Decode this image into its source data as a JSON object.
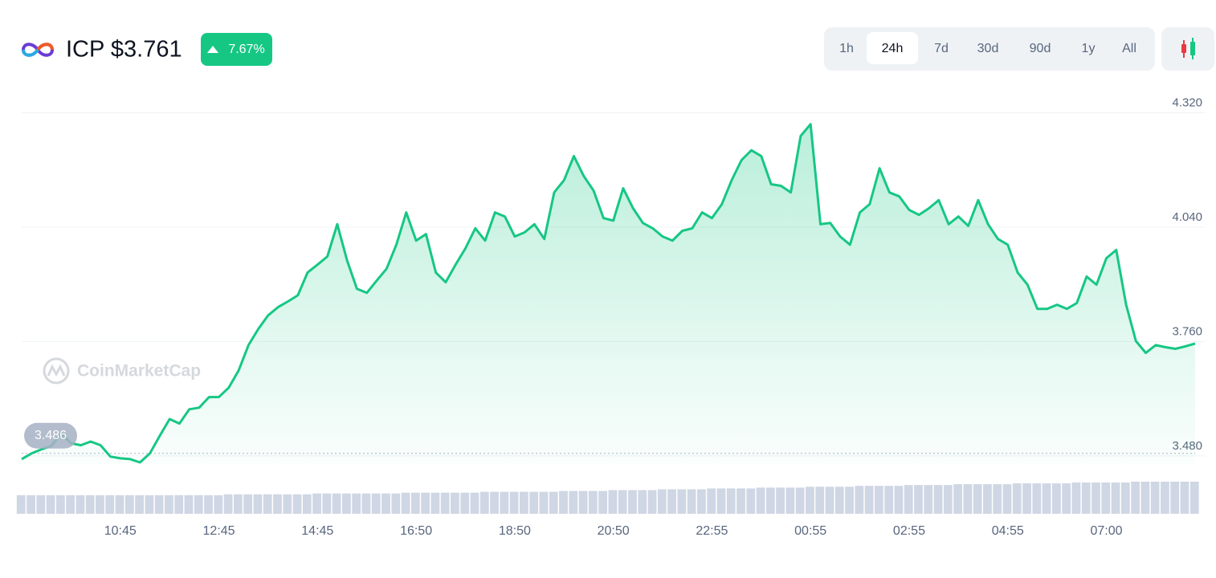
{
  "header": {
    "title": "ICP $3.761",
    "change": "7.67%",
    "ranges": [
      "1h",
      "24h",
      "7d",
      "30d",
      "90d",
      "1y",
      "All"
    ],
    "active_range": "24h",
    "watermark": "CoinMarketCap"
  },
  "chart_data": {
    "type": "line",
    "color": "#16c784",
    "categories": [
      null,
      null,
      null,
      null,
      null,
      null,
      null,
      null,
      null,
      null,
      "10:45",
      null,
      null,
      null,
      null,
      null,
      null,
      null,
      null,
      null,
      "12:45",
      null,
      null,
      null,
      null,
      null,
      null,
      null,
      null,
      null,
      "14:45",
      null,
      null,
      null,
      null,
      null,
      null,
      null,
      null,
      null,
      "16:50",
      null,
      null,
      null,
      null,
      null,
      null,
      null,
      null,
      null,
      "18:50",
      null,
      null,
      null,
      null,
      null,
      null,
      null,
      null,
      null,
      "20:50",
      null,
      null,
      null,
      null,
      null,
      null,
      null,
      null,
      null,
      "22:55",
      null,
      null,
      null,
      null,
      null,
      null,
      null,
      null,
      null,
      "00:55",
      null,
      null,
      null,
      null,
      null,
      null,
      null,
      null,
      null,
      "02:55",
      null,
      null,
      null,
      null,
      null,
      null,
      null,
      null,
      null,
      "04:55",
      null,
      null,
      null,
      null,
      null,
      null,
      null,
      null,
      null,
      "07:00",
      null,
      null,
      null,
      null,
      null,
      null,
      null,
      null,
      null
    ],
    "values": [
      3.472,
      3.486,
      3.496,
      3.504,
      3.535,
      3.511,
      3.506,
      3.515,
      3.506,
      3.478,
      3.474,
      3.472,
      3.464,
      3.486,
      3.529,
      3.57,
      3.559,
      3.594,
      3.598,
      3.624,
      3.624,
      3.647,
      3.689,
      3.751,
      3.791,
      3.824,
      3.844,
      3.858,
      3.873,
      3.929,
      3.948,
      3.968,
      4.047,
      3.958,
      3.889,
      3.879,
      3.909,
      3.938,
      3.997,
      4.076,
      4.007,
      4.023,
      3.929,
      3.905,
      3.948,
      3.988,
      4.037,
      4.007,
      4.076,
      4.066,
      4.017,
      4.027,
      4.047,
      4.011,
      4.125,
      4.155,
      4.214,
      4.165,
      4.129,
      4.062,
      4.056,
      4.135,
      4.086,
      4.05,
      4.037,
      4.017,
      4.007,
      4.031,
      4.037,
      4.076,
      4.062,
      4.096,
      4.155,
      4.204,
      4.228,
      4.214,
      4.145,
      4.141,
      4.125,
      4.263,
      4.292,
      4.047,
      4.05,
      4.017,
      3.997,
      4.076,
      4.096,
      4.184,
      4.125,
      4.115,
      4.082,
      4.07,
      4.086,
      4.106,
      4.047,
      4.066,
      4.043,
      4.106,
      4.047,
      4.011,
      3.997,
      3.929,
      3.899,
      3.84,
      3.84,
      3.85,
      3.84,
      3.854,
      3.919,
      3.899,
      3.964,
      3.984,
      3.85,
      3.761,
      3.732,
      3.751,
      3.746,
      3.742,
      3.748,
      3.755
    ],
    "volume": [
      22,
      22,
      22,
      22,
      22,
      22,
      22,
      22,
      22,
      22,
      22,
      22,
      22,
      22,
      22,
      22,
      22,
      22,
      22,
      22,
      22,
      23,
      23,
      23,
      23,
      23,
      23,
      23,
      23,
      23,
      24,
      24,
      24,
      24,
      24,
      24,
      24,
      24,
      24,
      25,
      25,
      25,
      25,
      25,
      25,
      25,
      25,
      26,
      26,
      26,
      26,
      26,
      26,
      26,
      26,
      27,
      27,
      27,
      27,
      27,
      28,
      28,
      28,
      28,
      28,
      29,
      29,
      29,
      29,
      29,
      30,
      30,
      30,
      30,
      30,
      31,
      31,
      31,
      31,
      31,
      32,
      32,
      32,
      32,
      32,
      33,
      33,
      33,
      33,
      33,
      34,
      34,
      34,
      34,
      34,
      35,
      35,
      35,
      35,
      35,
      35,
      36,
      36,
      36,
      36,
      36,
      36,
      37,
      37,
      37,
      37,
      37,
      37,
      38,
      38,
      38,
      38,
      38,
      38,
      38
    ],
    "baseline": 3.486,
    "ylim": [
      3.46,
      4.37
    ],
    "yticks": [
      {
        "value": 3.48,
        "label": "3.480"
      },
      {
        "value": 3.76,
        "label": "3.760"
      },
      {
        "value": 4.04,
        "label": "4.040"
      },
      {
        "value": 4.32,
        "label": "4.320"
      }
    ],
    "grid": true
  }
}
